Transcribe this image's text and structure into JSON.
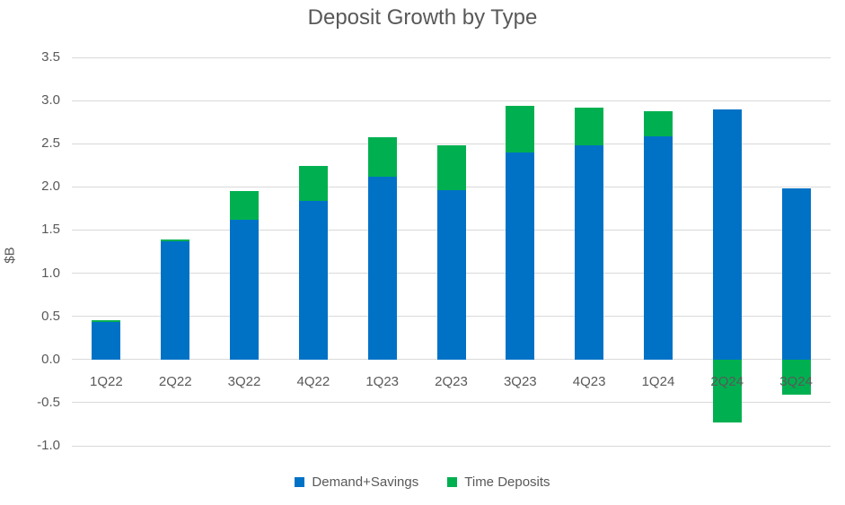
{
  "title": "Deposit Growth by Type",
  "chart_data": {
    "type": "bar",
    "stacked": true,
    "title": "Deposit Growth by Type",
    "xlabel": "",
    "ylabel": "$B",
    "categories": [
      "1Q22",
      "2Q22",
      "3Q22",
      "4Q22",
      "1Q23",
      "2Q23",
      "3Q23",
      "4Q23",
      "1Q24",
      "2Q24",
      "3Q24"
    ],
    "series": [
      {
        "name": "Demand+Savings",
        "color": "#0072C6",
        "values": [
          0.43,
          1.37,
          1.62,
          1.84,
          2.12,
          1.96,
          2.4,
          2.48,
          2.59,
          2.9,
          1.98
        ]
      },
      {
        "name": "Time Deposits",
        "color": "#00B050",
        "values": [
          0.02,
          0.02,
          0.33,
          0.4,
          0.45,
          0.52,
          0.54,
          0.44,
          0.29,
          -0.73,
          -0.41
        ]
      }
    ],
    "ylim": [
      -1.0,
      3.5
    ],
    "yticks": [
      "3.5",
      "3.0",
      "2.5",
      "2.0",
      "1.5",
      "1.0",
      "0.5",
      "0.0",
      "-0.5",
      "-1.0"
    ],
    "grid": true,
    "legend_position": "bottom"
  },
  "colors": {
    "background": "#FFFFFF",
    "grid": "#D9D9D9",
    "axis_text": "#595959",
    "title_text": "#595959",
    "demand_savings": "#0072C6",
    "time_deposits": "#00B050"
  }
}
